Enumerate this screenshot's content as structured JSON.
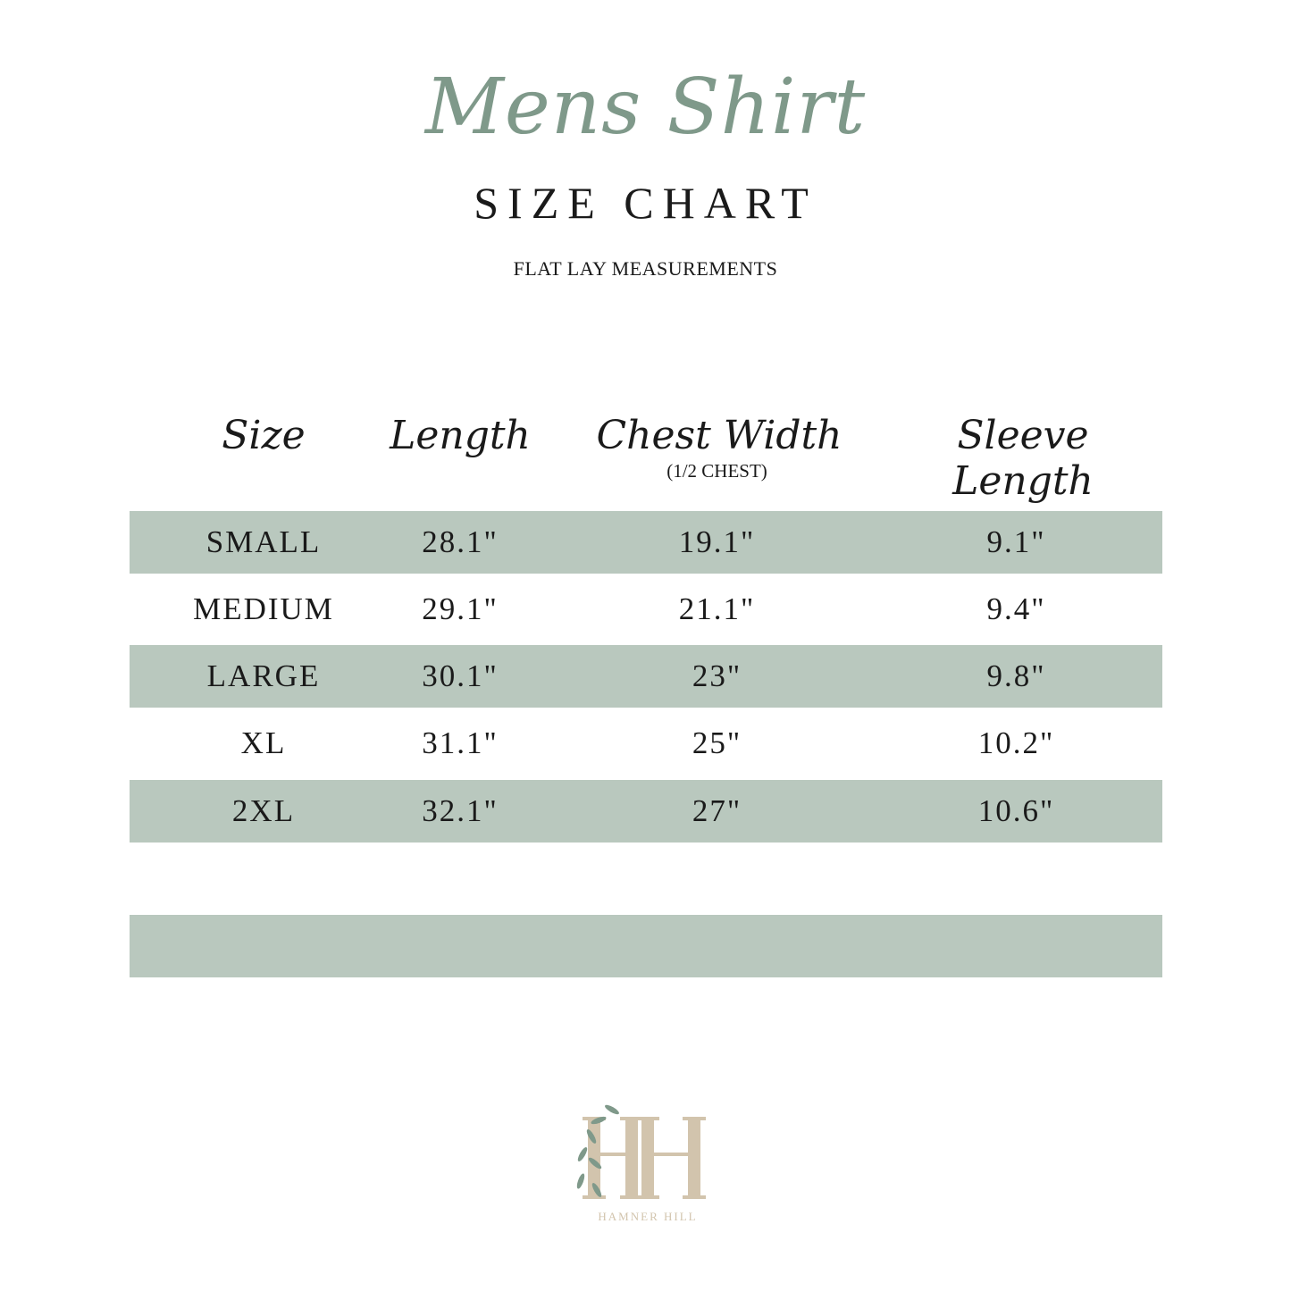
{
  "title": "Mens Shirt",
  "subtitle": "SIZE CHART",
  "note": "FLAT LAY MEASUREMENTS",
  "headers": [
    "Size",
    "Length",
    "Chest Width",
    "Sleeve Length"
  ],
  "header_sub": "(1/2 CHEST)",
  "rows": [
    [
      "SMALL",
      "28.1\"",
      "19.1\"",
      "9.1\""
    ],
    [
      "MEDIUM",
      "29.1\"",
      "21.1\"",
      "9.4\""
    ],
    [
      "LARGE",
      "30.1\"",
      "23\"",
      "9.8\""
    ],
    [
      "XL",
      "31.1\"",
      "25\"",
      "10.2\""
    ],
    [
      "2XL",
      "32.1\"",
      "27\"",
      "10.6\""
    ]
  ],
  "band_color": "#b9c8be",
  "accent_color": "#7f998a",
  "logo": {
    "monogram": "HH",
    "text": "HAMNER HILL"
  }
}
